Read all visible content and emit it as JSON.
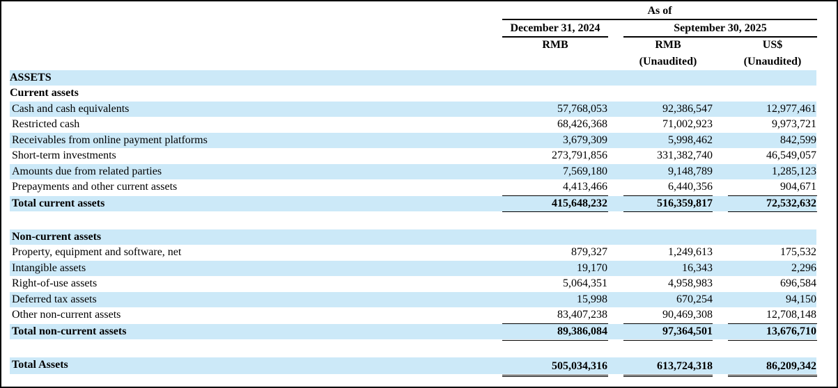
{
  "header": {
    "as_of": "As of",
    "date1": "December 31, 2024",
    "date2": "September 30, 2025",
    "currency1": "RMB",
    "currency2": "RMB",
    "currency3": "US$",
    "unaudited2": "(Unaudited)",
    "unaudited3": "(Unaudited)"
  },
  "assets_title": "ASSETS",
  "current": {
    "title": "Current assets",
    "rows": [
      {
        "label": "Cash and cash equivalents",
        "v1": "57,768,053",
        "v2": "92,386,547",
        "v3": "12,977,461"
      },
      {
        "label": "Restricted cash",
        "v1": "68,426,368",
        "v2": "71,002,923",
        "v3": "9,973,721"
      },
      {
        "label": "Receivables from online payment platforms",
        "v1": "3,679,309",
        "v2": "5,998,462",
        "v3": "842,599"
      },
      {
        "label": "Short-term investments",
        "v1": "273,791,856",
        "v2": "331,382,740",
        "v3": "46,549,057"
      },
      {
        "label": "Amounts due from related parties",
        "v1": "7,569,180",
        "v2": "9,148,789",
        "v3": "1,285,123"
      },
      {
        "label": "Prepayments and other current assets",
        "v1": "4,413,466",
        "v2": "6,440,356",
        "v3": "904,671"
      }
    ],
    "total": {
      "label": "Total current assets",
      "v1": "415,648,232",
      "v2": "516,359,817",
      "v3": "72,532,632"
    }
  },
  "noncurrent": {
    "title": "Non-current assets",
    "rows": [
      {
        "label": "Property, equipment and software, net",
        "v1": "879,327",
        "v2": "1,249,613",
        "v3": "175,532"
      },
      {
        "label": "Intangible assets",
        "v1": "19,170",
        "v2": "16,343",
        "v3": "2,296"
      },
      {
        "label": "Right-of-use assets",
        "v1": "5,064,351",
        "v2": "4,958,983",
        "v3": "696,584"
      },
      {
        "label": "Deferred tax assets",
        "v1": "15,998",
        "v2": "670,254",
        "v3": "94,150"
      },
      {
        "label": "Other non-current assets",
        "v1": "83,407,238",
        "v2": "90,469,308",
        "v3": "12,708,148"
      }
    ],
    "total": {
      "label": "Total non-current assets",
      "v1": "89,386,084",
      "v2": "97,364,501",
      "v3": "13,676,710"
    }
  },
  "total_assets": {
    "label": "Total Assets",
    "v1": "505,034,316",
    "v2": "613,724,318",
    "v3": "86,209,342"
  },
  "colors": {
    "band": "#cce9f8",
    "text": "#000000",
    "border": "#000000"
  }
}
